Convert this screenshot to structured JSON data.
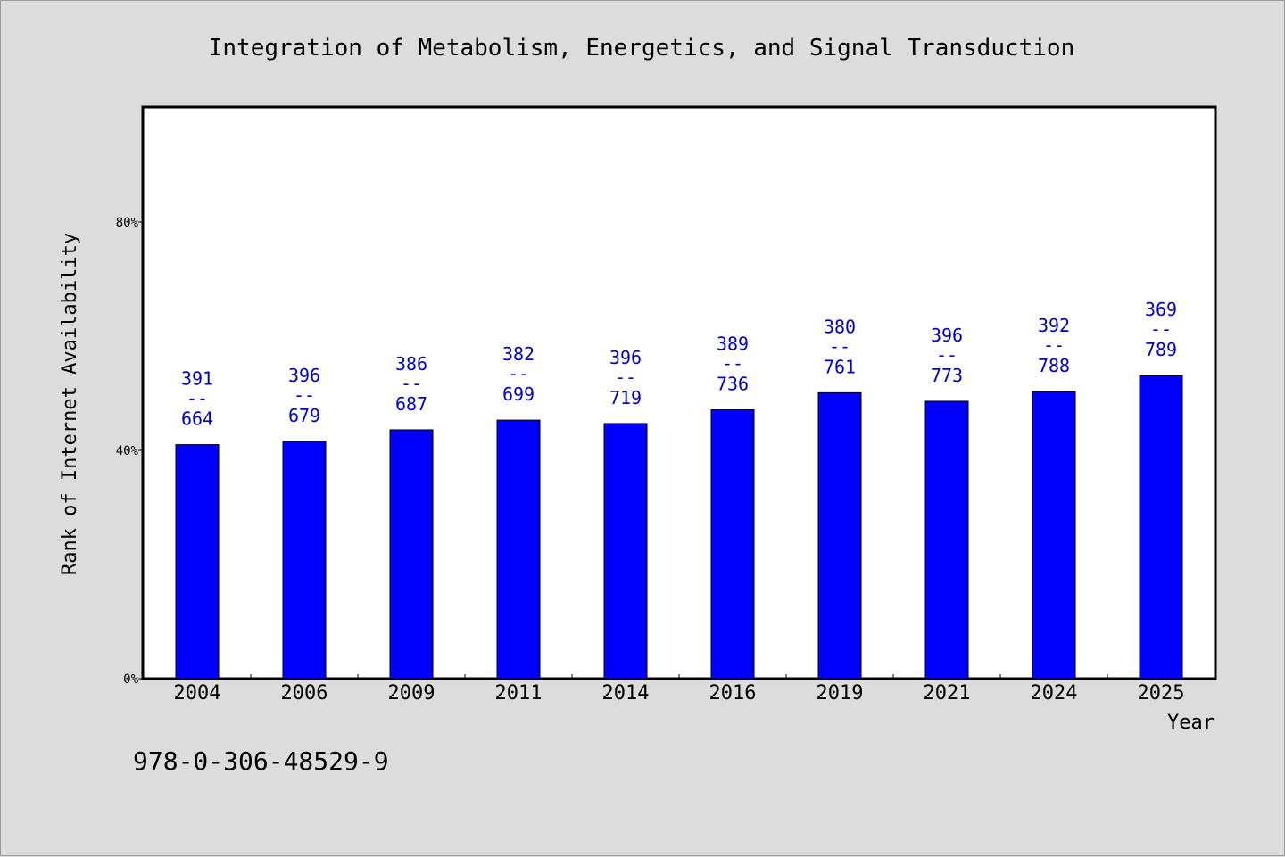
{
  "chart_data": {
    "type": "bar",
    "title": "Integration of Metabolism, Energetics, and Signal Transduction",
    "xlabel": "Year",
    "ylabel": "Rank of Internet Availability",
    "categories": [
      "2004",
      "2006",
      "2009",
      "2011",
      "2014",
      "2016",
      "2019",
      "2021",
      "2024",
      "2025"
    ],
    "values": [
      41.0,
      41.6,
      43.6,
      45.3,
      44.7,
      47.1,
      50.1,
      48.6,
      50.3,
      53.1
    ],
    "labels_top": [
      "391",
      "396",
      "386",
      "382",
      "396",
      "389",
      "380",
      "396",
      "392",
      "369"
    ],
    "labels_sep": "--",
    "labels_bottom": [
      "664",
      "679",
      "687",
      "699",
      "719",
      "736",
      "761",
      "773",
      "788",
      "789"
    ],
    "ylim": [
      0,
      100
    ],
    "yticks": [
      0,
      40,
      80
    ],
    "ytick_labels": [
      "0%",
      "40%",
      "80%"
    ],
    "grid": false,
    "bar_color": "#0000ff",
    "label_color": "#0000c8",
    "background_color": "#dcdcdc",
    "plot_background": "#ffffff"
  },
  "footer": {
    "isbn": "978-0-306-48529-9"
  }
}
